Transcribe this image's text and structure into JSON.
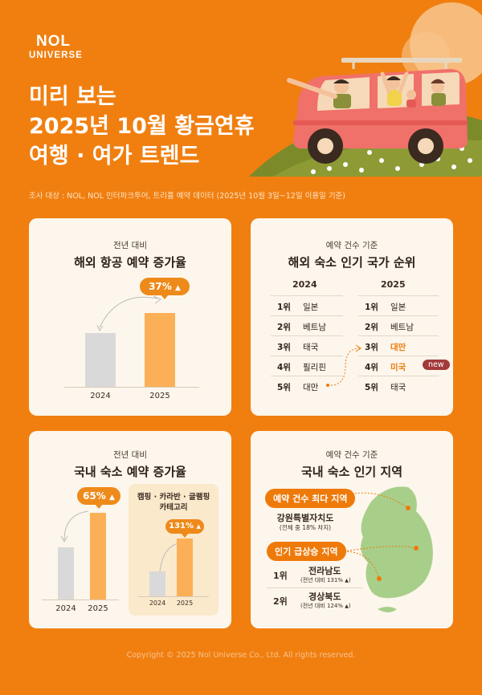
{
  "brand": {
    "line1": "NOL",
    "line2": "UNIVERSE"
  },
  "title": [
    "미리 보는",
    "2025년 10월 황금연휴",
    "여행 · 여가 트렌드"
  ],
  "survey_note": "조사 대상 : NOL, NOL 인터파크투어, 트리플 예약 데이터 (2025년 10월 3일~12일 이용일 기준)",
  "colors": {
    "background": "#f07f10",
    "card": "#fdf6ec",
    "accent": "#ee8a1a",
    "grey_bar": "#d9d9d9",
    "map_green": "#a8cf8a",
    "new_tag": "#a33a3a"
  },
  "card1": {
    "subtitle": "전년 대비",
    "title": "해외 항공 예약 증가율",
    "badge": "37%",
    "chart_data": {
      "type": "bar",
      "categories": [
        "2024",
        "2025"
      ],
      "values": [
        100,
        137
      ],
      "badge": "37%"
    }
  },
  "card2": {
    "subtitle": "예약 건수 기준",
    "title": "해외 숙소 인기 국가 순위",
    "col_2024": "2024",
    "col_2025": "2025",
    "ranks_2024": [
      {
        "rank": "1위",
        "country": "일본"
      },
      {
        "rank": "2위",
        "country": "베트남"
      },
      {
        "rank": "3위",
        "country": "태국"
      },
      {
        "rank": "4위",
        "country": "필리핀"
      },
      {
        "rank": "5위",
        "country": "대만"
      }
    ],
    "ranks_2025": [
      {
        "rank": "1위",
        "country": "일본"
      },
      {
        "rank": "2위",
        "country": "베트남"
      },
      {
        "rank": "3위",
        "country": "대만"
      },
      {
        "rank": "4위",
        "country": "미국"
      },
      {
        "rank": "5위",
        "country": "태국"
      }
    ],
    "new_tag": "new"
  },
  "card3": {
    "subtitle": "전년 대비",
    "title": "국내 숙소 예약 증가율",
    "badge": "65%",
    "chart_data": {
      "type": "bar",
      "categories": [
        "2024",
        "2025"
      ],
      "values": [
        100,
        165
      ],
      "badge": "65%"
    },
    "sub_box": {
      "title_line1": "캠핑 · 카라반 · 글램핑",
      "title_line2": "카테고리",
      "badge": "131%",
      "chart_data": {
        "type": "bar",
        "categories": [
          "2024",
          "2025"
        ],
        "values": [
          100,
          231
        ],
        "badge": "131%"
      }
    }
  },
  "card4": {
    "subtitle": "예약 건수 기준",
    "title": "국내 숙소 인기 지역",
    "pill1": "예약 건수 최다 지역",
    "top_region": "강원특별자치도",
    "top_region_note": "(전체 중 18% 차지)",
    "pill2": "인기 급상승 지역",
    "rising": [
      {
        "rank": "1위",
        "region": "전라남도",
        "note": "(전년 대비 131%"
      },
      {
        "rank": "2위",
        "region": "경상북도",
        "note": "(전년 대비 124%"
      }
    ],
    "note_close": ")"
  },
  "footer": "Copyright © 2025 Nol Universe Co., Ltd. All rights reserved."
}
